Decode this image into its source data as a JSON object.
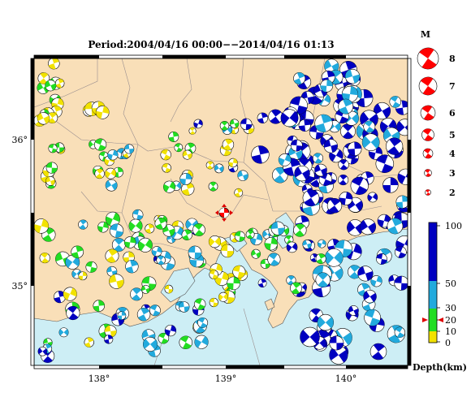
{
  "title": "Period:2004/04/16 00:00−−2014/04/16 01:13",
  "axes": {
    "lon_ticks": [
      "138°",
      "139°",
      "140°"
    ],
    "lat_ticks": [
      "36°",
      "35°"
    ]
  },
  "magnitude_legend": {
    "heading": "M",
    "levels": [
      "8",
      "7",
      "6",
      "5",
      "4",
      "3",
      "2"
    ]
  },
  "depth_scale": {
    "label": "Depth(km)",
    "ticks": [
      "100",
      "50",
      "30",
      "20",
      "10",
      "0"
    ],
    "marker_value": 20
  },
  "colors": {
    "land": "#f9dfb8",
    "sea": "#cdeef5",
    "mech_red": "#ff0000",
    "depth_yellow": "#f2e200",
    "depth_green": "#22dd22",
    "depth_cyan": "#22aadd",
    "depth_blue": "#0000c0"
  }
}
